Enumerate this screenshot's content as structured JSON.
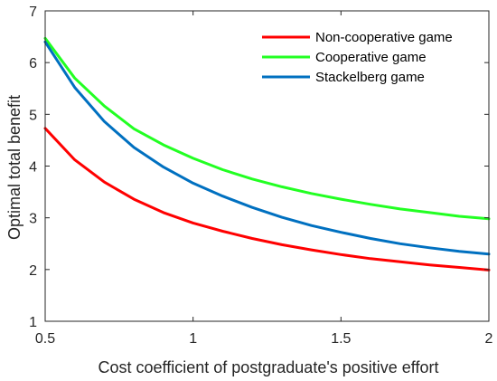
{
  "chart_data": {
    "type": "line",
    "xlabel": "Cost coefficient of postgraduate's positive effort",
    "ylabel": "Optimal total benefit",
    "xlim": [
      0.5,
      2
    ],
    "ylim": [
      1,
      7
    ],
    "xticks": [
      0.5,
      1,
      1.5,
      2
    ],
    "xtick_labels": [
      "0.5",
      "1",
      "1.5",
      "2"
    ],
    "yticks": [
      1,
      2,
      3,
      4,
      5,
      6,
      7
    ],
    "ytick_labels": [
      "1",
      "2",
      "3",
      "4",
      "5",
      "6",
      "7"
    ],
    "grid": false,
    "legend_position": "top-right",
    "x": [
      0.5,
      0.6,
      0.7,
      0.8,
      0.9,
      1.0,
      1.1,
      1.2,
      1.3,
      1.4,
      1.5,
      1.6,
      1.7,
      1.8,
      1.9,
      2.0
    ],
    "series": [
      {
        "name": "Non-cooperative game",
        "color": "#ff0000",
        "values": [
          4.73,
          4.12,
          3.69,
          3.36,
          3.1,
          2.9,
          2.74,
          2.6,
          2.48,
          2.38,
          2.29,
          2.21,
          2.15,
          2.09,
          2.04,
          1.99
        ]
      },
      {
        "name": "Cooperative game",
        "color": "#22ff22",
        "values": [
          6.47,
          5.7,
          5.16,
          4.72,
          4.41,
          4.15,
          3.93,
          3.75,
          3.6,
          3.47,
          3.36,
          3.26,
          3.17,
          3.1,
          3.03,
          2.98
        ]
      },
      {
        "name": "Stackelberg game",
        "color": "#0070c0",
        "values": [
          6.4,
          5.52,
          4.86,
          4.36,
          3.98,
          3.67,
          3.42,
          3.2,
          3.01,
          2.85,
          2.72,
          2.6,
          2.5,
          2.42,
          2.35,
          2.3
        ]
      }
    ]
  }
}
